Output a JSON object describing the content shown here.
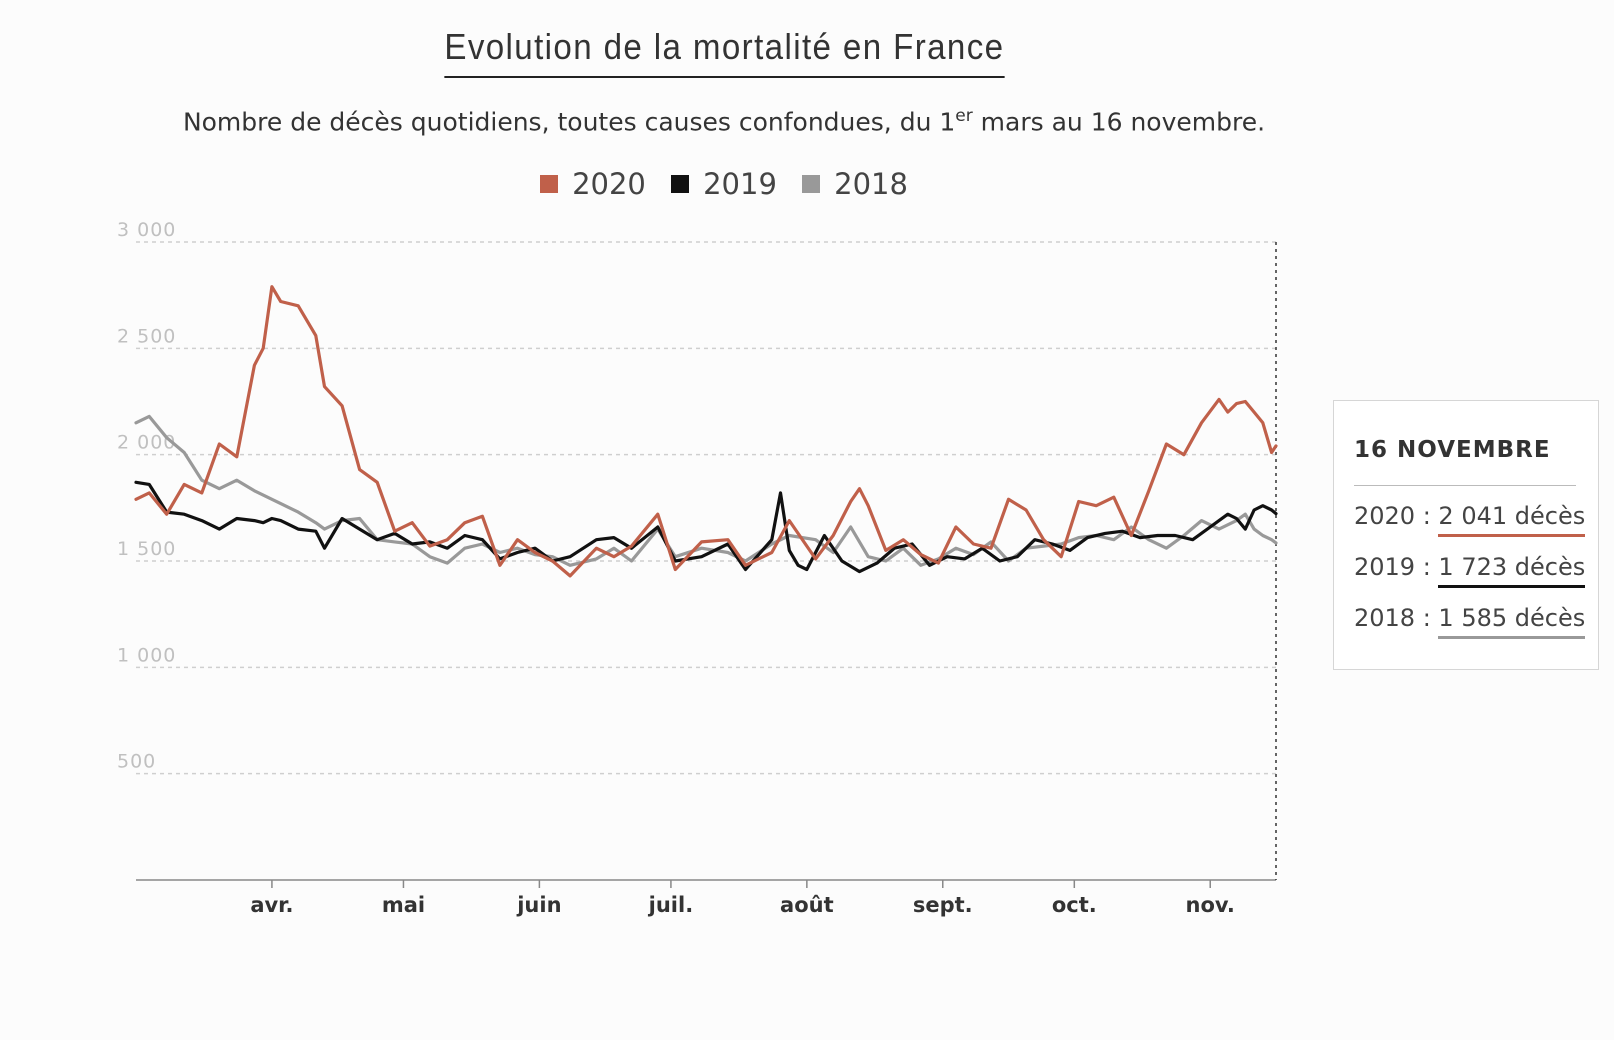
{
  "title": "Evolution de la mortalité en France",
  "subtitle_main": "Nombre de décès quotidiens, toutes causes confondues, du 1",
  "subtitle_sup": "er",
  "subtitle_end": " mars au 16 novembre.",
  "colors": {
    "2020": "#c0604a",
    "2019": "#111111",
    "2018": "#999999",
    "grid": "#cfcfcf",
    "axis_label": "#c0c0c0"
  },
  "legend": [
    {
      "label": "2020",
      "color": "#c0604a"
    },
    {
      "label": "2019",
      "color": "#111111"
    },
    {
      "label": "2018",
      "color": "#999999"
    }
  ],
  "tooltip": {
    "date": "16 NOVEMBRE",
    "rows": [
      {
        "year": "2020",
        "sep": " : ",
        "value": "2 041 décès",
        "color": "#c0604a"
      },
      {
        "year": "2019",
        "sep": " : ",
        "value": "1 723 décès",
        "color": "#111111"
      },
      {
        "year": "2018",
        "sep": " : ",
        "value": "1 585 décès",
        "color": "#999999"
      }
    ]
  },
  "chart_data": {
    "type": "line",
    "title": "Evolution de la mortalité en France",
    "xlabel": "",
    "ylabel": "",
    "x_range": [
      1,
      261
    ],
    "x_unit": "day index from 1 March (1 = 1 mars, 261 = 16 novembre)",
    "ylim": [
      0,
      3000
    ],
    "yticks": [
      500,
      1000,
      1500,
      2000,
      2500,
      3000
    ],
    "ytick_labels": [
      "500",
      "1 000",
      "1 500",
      "2 000",
      "2 500",
      "3 000"
    ],
    "month_ticks": [
      {
        "label": "avr.",
        "day": 32
      },
      {
        "label": "mai",
        "day": 62
      },
      {
        "label": "juin",
        "day": 93
      },
      {
        "label": "juil.",
        "day": 123
      },
      {
        "label": "août",
        "day": 154
      },
      {
        "label": "sept.",
        "day": 185
      },
      {
        "label": "oct.",
        "day": 215
      },
      {
        "label": "nov.",
        "day": 246
      }
    ],
    "series": [
      {
        "name": "2020",
        "x": [
          1,
          4,
          8,
          12,
          16,
          20,
          24,
          28,
          30,
          32,
          34,
          38,
          42,
          44,
          48,
          52,
          56,
          60,
          64,
          68,
          72,
          76,
          80,
          84,
          88,
          92,
          96,
          100,
          106,
          110,
          114,
          120,
          124,
          130,
          136,
          140,
          146,
          150,
          156,
          160,
          164,
          166,
          168,
          172,
          176,
          180,
          184,
          188,
          192,
          196,
          200,
          204,
          208,
          212,
          216,
          220,
          224,
          228,
          232,
          236,
          240,
          244,
          248,
          250,
          252,
          254,
          256,
          258,
          260,
          261
        ],
        "y": [
          1790,
          1820,
          1720,
          1860,
          1820,
          2050,
          1990,
          2420,
          2500,
          2790,
          2720,
          2700,
          2560,
          2320,
          2230,
          1930,
          1870,
          1640,
          1680,
          1570,
          1600,
          1680,
          1710,
          1480,
          1600,
          1540,
          1500,
          1430,
          1560,
          1520,
          1570,
          1720,
          1460,
          1590,
          1600,
          1480,
          1540,
          1690,
          1510,
          1620,
          1780,
          1840,
          1760,
          1550,
          1600,
          1530,
          1490,
          1660,
          1580,
          1560,
          1790,
          1740,
          1600,
          1520,
          1780,
          1760,
          1800,
          1620,
          1830,
          2050,
          2000,
          2150,
          2260,
          2200,
          2240,
          2250,
          2200,
          2150,
          2010,
          2041
        ]
      },
      {
        "name": "2019",
        "x": [
          1,
          4,
          8,
          12,
          16,
          20,
          24,
          28,
          30,
          32,
          34,
          38,
          42,
          44,
          48,
          52,
          56,
          60,
          64,
          68,
          72,
          76,
          80,
          84,
          88,
          92,
          96,
          100,
          106,
          110,
          114,
          120,
          124,
          130,
          136,
          140,
          146,
          148,
          150,
          152,
          154,
          158,
          162,
          166,
          170,
          174,
          178,
          182,
          186,
          190,
          194,
          198,
          202,
          206,
          210,
          214,
          218,
          222,
          226,
          230,
          234,
          238,
          242,
          246,
          250,
          252,
          254,
          256,
          258,
          260,
          261
        ],
        "y": [
          1870,
          1860,
          1730,
          1720,
          1690,
          1650,
          1700,
          1690,
          1680,
          1700,
          1690,
          1650,
          1640,
          1560,
          1700,
          1650,
          1600,
          1630,
          1580,
          1590,
          1560,
          1620,
          1600,
          1510,
          1540,
          1560,
          1500,
          1520,
          1600,
          1610,
          1560,
          1660,
          1500,
          1520,
          1580,
          1460,
          1600,
          1820,
          1550,
          1480,
          1460,
          1620,
          1500,
          1450,
          1490,
          1560,
          1580,
          1480,
          1520,
          1510,
          1560,
          1500,
          1520,
          1600,
          1580,
          1550,
          1610,
          1630,
          1640,
          1610,
          1620,
          1620,
          1600,
          1660,
          1720,
          1700,
          1650,
          1740,
          1760,
          1740,
          1723
        ]
      },
      {
        "name": "2018",
        "x": [
          1,
          4,
          8,
          12,
          16,
          20,
          24,
          28,
          30,
          32,
          34,
          38,
          42,
          44,
          48,
          52,
          56,
          60,
          64,
          68,
          72,
          76,
          80,
          84,
          88,
          92,
          96,
          100,
          106,
          110,
          114,
          120,
          124,
          130,
          136,
          140,
          146,
          150,
          156,
          160,
          164,
          168,
          172,
          176,
          180,
          184,
          188,
          192,
          196,
          200,
          204,
          208,
          212,
          216,
          220,
          224,
          228,
          232,
          236,
          240,
          244,
          248,
          252,
          254,
          256,
          258,
          260,
          261
        ],
        "y": [
          2150,
          2180,
          2080,
          2010,
          1880,
          1840,
          1880,
          1830,
          1810,
          1790,
          1770,
          1730,
          1680,
          1650,
          1690,
          1700,
          1600,
          1590,
          1580,
          1520,
          1490,
          1560,
          1580,
          1540,
          1560,
          1530,
          1520,
          1480,
          1510,
          1560,
          1500,
          1650,
          1520,
          1560,
          1540,
          1500,
          1580,
          1620,
          1600,
          1540,
          1660,
          1520,
          1500,
          1560,
          1480,
          1510,
          1560,
          1530,
          1590,
          1500,
          1560,
          1570,
          1580,
          1610,
          1620,
          1600,
          1660,
          1600,
          1560,
          1620,
          1690,
          1650,
          1690,
          1720,
          1650,
          1620,
          1600,
          1585
        ]
      }
    ]
  }
}
